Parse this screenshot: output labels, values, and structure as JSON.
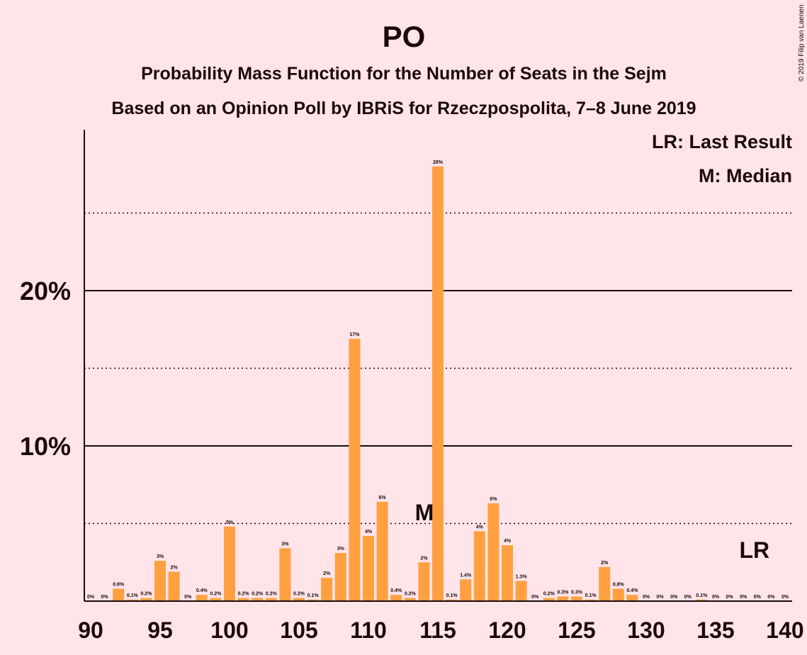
{
  "chart_data": {
    "type": "bar",
    "title": "PO",
    "subtitle_lines": [
      "Probability Mass Function for the Number of Seats in the Sejm",
      "Based on an Opinion Poll by IBRiS for Rzeczpospolita, 7–8 June 2019"
    ],
    "copyright": "© 2019 Filip van Laenen",
    "legend": [
      "LR: Last Result",
      "M: Median"
    ],
    "x": [
      90,
      91,
      92,
      93,
      94,
      95,
      96,
      97,
      98,
      99,
      100,
      101,
      102,
      103,
      104,
      105,
      106,
      107,
      108,
      109,
      110,
      111,
      112,
      113,
      114,
      115,
      116,
      117,
      118,
      119,
      120,
      121,
      122,
      123,
      124,
      125,
      126,
      127,
      128,
      129,
      130,
      131,
      132,
      133,
      134,
      135,
      136,
      137,
      138,
      139,
      140
    ],
    "values": [
      0,
      0,
      0.8,
      0.1,
      0.2,
      2.6,
      1.9,
      0,
      0.4,
      0.2,
      4.8,
      0.2,
      0.2,
      0.2,
      3.4,
      0.2,
      0.1,
      1.5,
      3.1,
      16.9,
      4.2,
      6.4,
      0.4,
      0.2,
      2.5,
      28.0,
      0.1,
      1.4,
      4.5,
      6.3,
      3.6,
      1.3,
      0,
      0.2,
      0.3,
      0.3,
      0.1,
      2.2,
      0.8,
      0.4,
      0,
      0,
      0,
      0,
      0.1,
      0,
      0,
      0,
      0,
      0,
      0
    ],
    "labels": [
      "0%",
      "0%",
      "0.8%",
      "0.1%",
      "0.2%",
      "3%",
      "2%",
      "0%",
      "0.4%",
      "0.2%",
      "5%",
      "0.2%",
      "0.2%",
      "0.2%",
      "3%",
      "0.2%",
      "0.1%",
      "2%",
      "3%",
      "17%",
      "4%",
      "6%",
      "0.4%",
      "0.2%",
      "2%",
      "28%",
      "0.1%",
      "1.4%",
      "4%",
      "6%",
      "4%",
      "1.3%",
      "0%",
      "0.2%",
      "0.3%",
      "0.3%",
      "0.1%",
      "2%",
      "0.8%",
      "0.4%",
      "0%",
      "0%",
      "0%",
      "0%",
      "0.1%",
      "0%",
      "0%",
      "0%",
      "0%",
      "0%",
      "0%"
    ],
    "xticks": [
      90,
      95,
      100,
      105,
      110,
      115,
      120,
      125,
      130,
      135,
      140
    ],
    "xtick_labels": [
      "90",
      "95",
      "100",
      "105",
      "110",
      "115",
      "120",
      "125",
      "130",
      "135",
      "140"
    ],
    "yticks_major": [
      10,
      20
    ],
    "ytick_labels": [
      "10%",
      "20%"
    ],
    "yticks_minor": [
      5,
      15,
      25
    ],
    "ylim": [
      0,
      30.4
    ],
    "median": 115,
    "median_label": "M",
    "last_result": 138,
    "last_result_label": "LR",
    "bar_color": "#ffa040"
  }
}
